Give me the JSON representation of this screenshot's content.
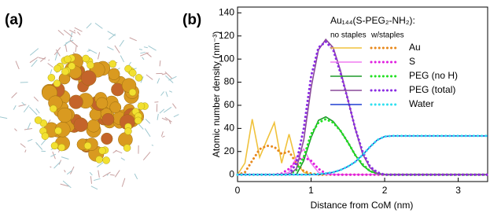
{
  "chart_data": {
    "type": "line",
    "panel_labels": [
      "(a)",
      "(b)"
    ],
    "xlabel": "Distance from CoM (nm)",
    "ylabel": "Atomic number density (nm⁻³)",
    "legend_title": "Au₁₄₄(S-PEG₂-NH₂):",
    "legend_columns": [
      "no staples",
      "w/staples"
    ],
    "xlim": [
      0,
      3.4
    ],
    "xticks": [
      0,
      1,
      2,
      3
    ],
    "ylim": [
      -6,
      145
    ],
    "yticks": [
      0,
      20,
      40,
      60,
      80,
      100,
      120,
      140
    ],
    "x": [
      0,
      0.1,
      0.2,
      0.3,
      0.4,
      0.5,
      0.6,
      0.7,
      0.8,
      0.9,
      1.0,
      1.1,
      1.2,
      1.3,
      1.4,
      1.5,
      1.6,
      1.7,
      1.8,
      1.9,
      2.0,
      2.1,
      2.2,
      2.3,
      2.4,
      2.5,
      2.6,
      2.7,
      2.8,
      2.9,
      3.0,
      3.1,
      3.2,
      3.3,
      3.4
    ],
    "series": [
      {
        "name": "Au",
        "color": "#f0c23c",
        "color_staples": "#e8891c",
        "values": [
          0,
          10,
          48,
          15,
          30,
          45,
          10,
          35,
          10,
          2,
          0,
          0,
          0,
          0,
          0,
          0,
          0,
          0,
          0,
          0,
          0,
          0,
          0,
          0,
          0,
          0,
          0,
          0,
          0,
          0,
          0,
          0,
          0,
          0,
          0
        ],
        "values_staples": [
          0,
          2,
          12,
          22,
          25,
          24,
          18,
          20,
          10,
          3,
          1,
          0,
          0,
          0,
          0,
          0,
          0,
          0,
          0,
          0,
          0,
          0,
          0,
          0,
          0,
          0,
          0,
          0,
          0,
          0,
          0,
          0,
          0,
          0,
          0
        ]
      },
      {
        "name": "S",
        "color": "#f07cf0",
        "color_staples": "#e020e0",
        "values": [
          0,
          0,
          0,
          0,
          0,
          0,
          0,
          2,
          15,
          22,
          10,
          2,
          0,
          0,
          0,
          0,
          0,
          0,
          0,
          0,
          0,
          0,
          0,
          0,
          0,
          0,
          0,
          0,
          0,
          0,
          0,
          0,
          0,
          0,
          0
        ],
        "values_staples": [
          0,
          0,
          0,
          0,
          0,
          0,
          1,
          5,
          12,
          15,
          12,
          5,
          1,
          0,
          0,
          0,
          0,
          0,
          0,
          0,
          0,
          0,
          0,
          0,
          0,
          0,
          0,
          0,
          0,
          0,
          0,
          0,
          0,
          0,
          0
        ]
      },
      {
        "name": "PEG (no H)",
        "color": "#1f9a2a",
        "color_staples": "#22e022",
        "values": [
          0,
          0,
          0,
          0,
          0,
          0,
          0,
          0,
          0,
          12,
          32,
          47,
          50,
          46,
          38,
          28,
          17,
          8,
          3,
          1,
          0,
          0,
          0,
          0,
          0,
          0,
          0,
          0,
          0,
          0,
          0,
          0,
          0,
          0,
          0
        ],
        "values_staples": [
          0,
          0,
          0,
          0,
          0,
          0,
          0,
          0,
          4,
          15,
          35,
          45,
          48,
          45,
          38,
          28,
          17,
          9,
          3,
          1,
          0,
          0,
          0,
          0,
          0,
          0,
          0,
          0,
          0,
          0,
          0,
          0,
          0,
          0,
          0
        ]
      },
      {
        "name": "PEG (total)",
        "color": "#8a4a9a",
        "color_staples": "#8a2be2",
        "values": [
          0,
          0,
          0,
          0,
          0,
          0,
          0,
          0,
          5,
          30,
          75,
          108,
          117,
          110,
          90,
          65,
          40,
          18,
          6,
          1,
          0,
          0,
          0,
          0,
          0,
          0,
          0,
          0,
          0,
          0,
          0,
          0,
          0,
          0,
          0
        ],
        "values_staples": [
          0,
          0,
          0,
          0,
          0,
          0,
          0,
          0,
          10,
          40,
          85,
          110,
          115,
          108,
          88,
          65,
          40,
          20,
          7,
          2,
          0,
          0,
          0,
          0,
          0,
          0,
          0,
          0,
          0,
          0,
          0,
          0,
          0,
          0,
          0
        ]
      },
      {
        "name": "Water",
        "color": "#1f3fd0",
        "color_staples": "#30e0f0",
        "values": [
          0,
          0,
          0,
          0,
          0,
          0,
          0,
          0,
          0,
          0,
          0,
          0,
          1,
          2,
          4,
          7,
          11,
          17,
          24,
          30,
          33,
          33.5,
          33.5,
          33.5,
          33.5,
          33.5,
          33.5,
          33.5,
          33.5,
          33.5,
          33.5,
          33.5,
          33.5,
          33.5,
          33.5
        ],
        "values_staples": [
          0,
          0,
          0,
          0,
          0,
          0,
          0,
          0,
          0,
          0,
          0,
          0.5,
          1,
          2,
          4,
          7,
          11,
          17,
          24,
          30,
          33,
          33.5,
          33.5,
          33.5,
          33.5,
          33.5,
          33.5,
          33.5,
          33.5,
          33.5,
          33.5,
          33.5,
          33.5,
          33.5,
          33.5
        ]
      }
    ]
  }
}
